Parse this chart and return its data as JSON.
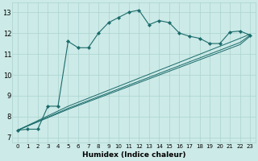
{
  "xlabel": "Humidex (Indice chaleur)",
  "bg_color": "#cceae7",
  "grid_color": "#aad4d0",
  "line_color": "#1a6b6b",
  "xlim": [
    -0.5,
    23.5
  ],
  "ylim": [
    6.75,
    13.45
  ],
  "xticks": [
    0,
    1,
    2,
    3,
    4,
    5,
    6,
    7,
    8,
    9,
    10,
    11,
    12,
    13,
    14,
    15,
    16,
    17,
    18,
    19,
    20,
    21,
    22,
    23
  ],
  "yticks": [
    7,
    8,
    9,
    10,
    11,
    12,
    13
  ],
  "curve": {
    "x": [
      0,
      1,
      2,
      3,
      4,
      5,
      6,
      7,
      8,
      9,
      10,
      11,
      12,
      13,
      14,
      15,
      16,
      17,
      18,
      19,
      20,
      21,
      22,
      23
    ],
    "y": [
      7.35,
      7.4,
      7.4,
      8.5,
      8.5,
      11.6,
      11.3,
      11.3,
      12.0,
      12.5,
      12.75,
      13.0,
      13.1,
      12.4,
      12.6,
      12.5,
      12.0,
      11.85,
      11.75,
      11.5,
      11.5,
      12.05,
      12.1,
      11.9
    ]
  },
  "linear_lines": [
    {
      "x": [
        0,
        5,
        22,
        23
      ],
      "y": [
        7.35,
        8.5,
        11.75,
        11.95
      ]
    },
    {
      "x": [
        0,
        5,
        22,
        23
      ],
      "y": [
        7.35,
        8.4,
        11.55,
        11.9
      ]
    },
    {
      "x": [
        0,
        5,
        22,
        23
      ],
      "y": [
        7.35,
        8.35,
        11.45,
        11.85
      ]
    }
  ]
}
